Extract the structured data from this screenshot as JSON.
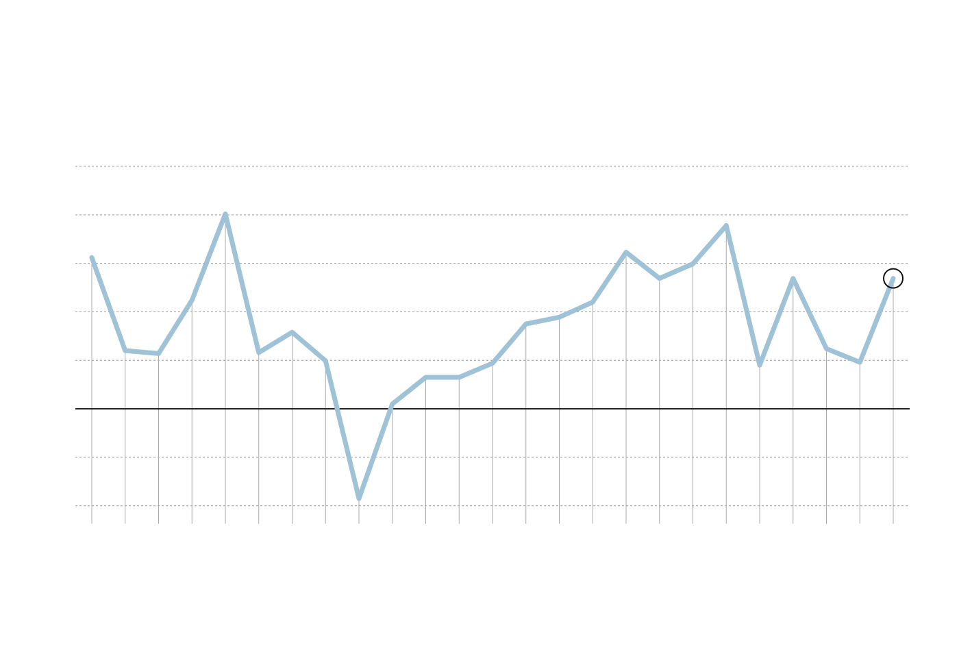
{
  "chart_data": {
    "type": "line",
    "series": [
      {
        "color": "#9fc2d6",
        "values": [
          3.12,
          1.2,
          1.14,
          2.24,
          4.02,
          1.16,
          1.58,
          0.99,
          -1.85,
          0.1,
          0.65,
          0.65,
          0.94,
          1.75,
          1.89,
          2.2,
          3.23,
          2.69,
          2.99,
          3.78,
          0.9,
          2.69,
          1.24,
          0.96,
          2.69
        ]
      }
    ],
    "ylim": [
      -2.37,
      5
    ],
    "yticks": [
      -2,
      -1,
      0,
      1,
      2,
      3,
      4,
      5
    ],
    "grid": true,
    "highlight": 24
  }
}
